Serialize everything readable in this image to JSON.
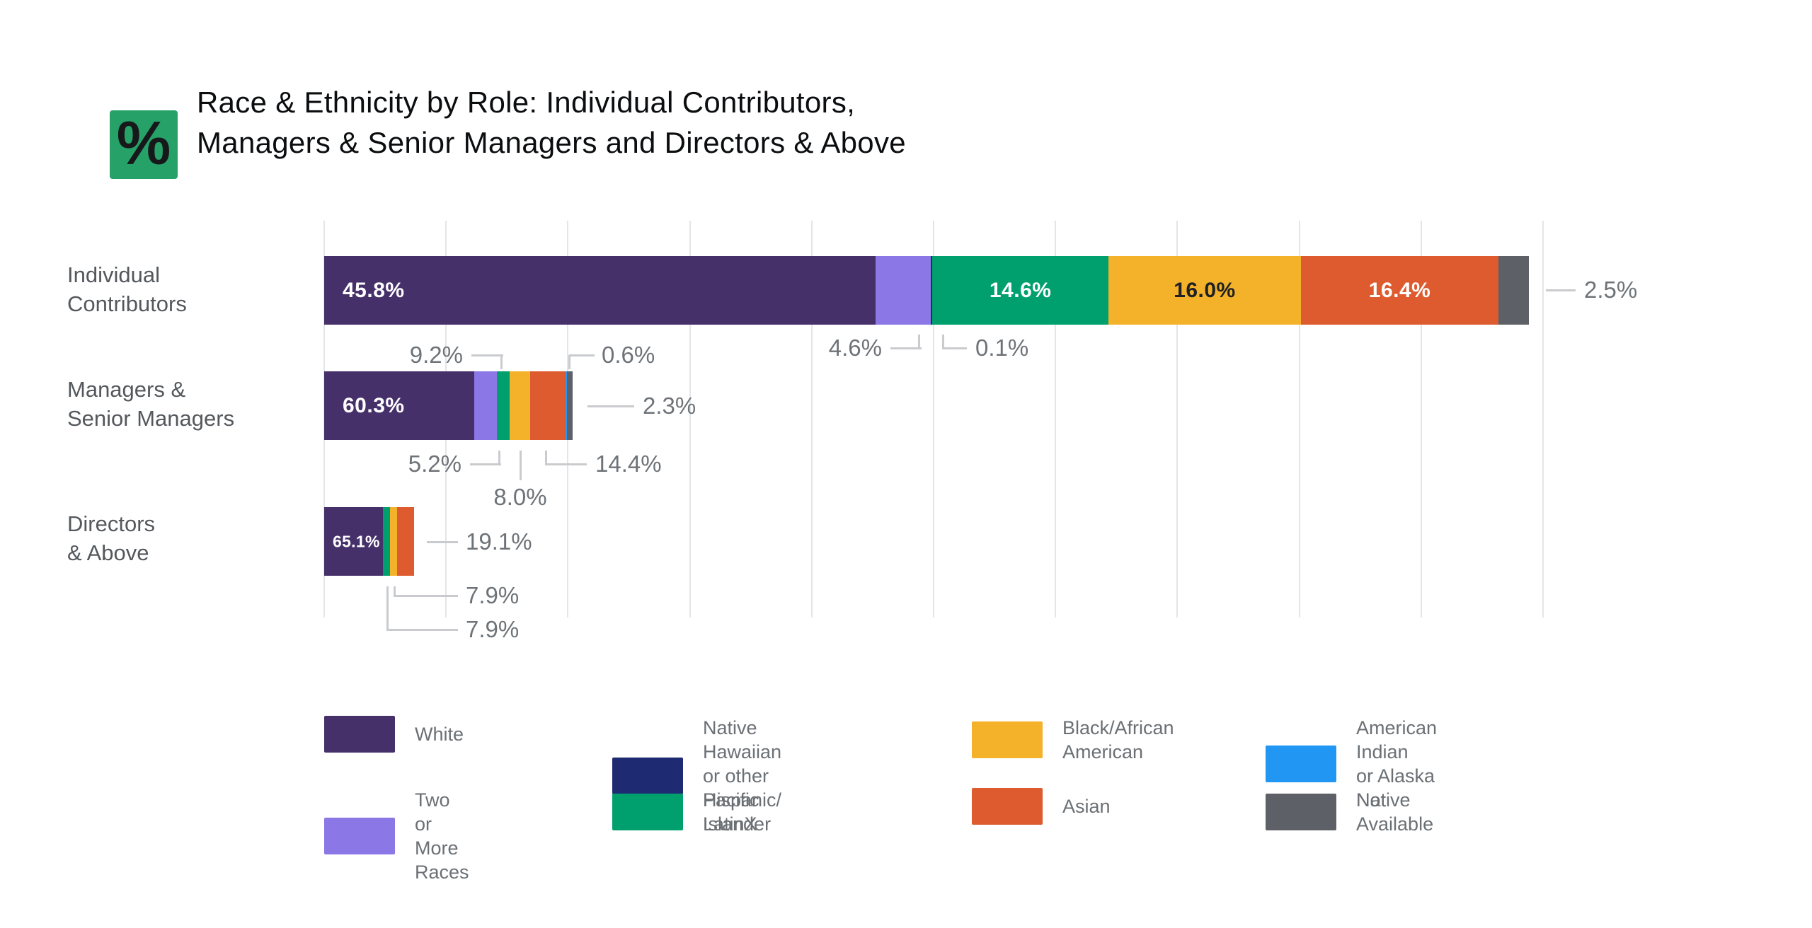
{
  "title": {
    "lines": [
      "Race & Ethnicity by Role: Individual Contributors,",
      "Managers & Senior Managers and Directors & Above"
    ]
  },
  "logo": {
    "glyph": "%"
  },
  "colors": {
    "white": "#46306A",
    "two_or_more": "#8B78E6",
    "native_hawaiian": "#1E2A72",
    "hispanic_latinx": "#00A06E",
    "black_african_american": "#F3B229",
    "asian": "#DD5B2F",
    "american_indian": "#2196F3",
    "not_available": "#5D6167",
    "grid": "#E4E5E8",
    "callout_line": "#C9CBCE",
    "callout_text": "#6E7378",
    "row_label": "#54585C",
    "legend_text": "#6B7075",
    "title_text": "#0B0D0F",
    "logo_bg": "#26A269",
    "logo_fg": "#16181A",
    "bar_label_light": "#FFFFFF",
    "bar_label_dark": "#1E2024"
  },
  "chart_data": {
    "type": "bar",
    "orientation": "horizontal",
    "stacked": true,
    "unit": "percent",
    "title": "Race & Ethnicity by Role: Individual Contributors, Managers & Senior Managers and Directors & Above",
    "categories": [
      "Individual Contributors",
      "Managers & Senior Managers",
      "Directors & Above"
    ],
    "series": [
      {
        "name": "White",
        "values": [
          45.8,
          60.3,
          65.1
        ]
      },
      {
        "name": "Two or More Races",
        "values": [
          4.6,
          9.2,
          null
        ]
      },
      {
        "name": "Native Hawaiian or other Pacific Islander",
        "values": [
          0.1,
          null,
          null
        ]
      },
      {
        "name": "Hispanic/LatinX",
        "values": [
          14.6,
          5.2,
          7.9
        ]
      },
      {
        "name": "Black/African American",
        "values": [
          16.0,
          8.0,
          7.9
        ]
      },
      {
        "name": "Asian",
        "values": [
          16.4,
          14.4,
          19.1
        ]
      },
      {
        "name": "American Indian or Alaska Native",
        "values": [
          null,
          0.6,
          null
        ]
      },
      {
        "name": "Not Available",
        "values": [
          2.5,
          2.3,
          null
        ]
      }
    ],
    "bar_axis_fraction": [
      0.988,
      0.204,
      0.074
    ],
    "note_each_bar_totals": 100,
    "gridlines_pct": [
      0,
      10,
      20,
      30,
      40,
      50,
      60,
      70,
      80,
      90,
      100
    ],
    "legend_position": "bottom",
    "grid": true
  },
  "rows": [
    {
      "name": "individual-contributors",
      "label_lines": [
        "Individual",
        "Contributors"
      ],
      "bar_width_pct": 98.8,
      "segments": [
        {
          "category": "white",
          "value": 45.8,
          "label": "45.8%",
          "label_pos": "left",
          "label_theme": "light"
        },
        {
          "category": "two_or_more",
          "value": 4.6
        },
        {
          "category": "native_hawaiian",
          "value": 0.1
        },
        {
          "category": "hispanic_latinx",
          "value": 14.6,
          "label": "14.6%",
          "label_pos": "center",
          "label_theme": "light"
        },
        {
          "category": "black_african_american",
          "value": 16.0,
          "label": "16.0%",
          "label_pos": "center",
          "label_theme": "dark"
        },
        {
          "category": "asian",
          "value": 16.4,
          "label": "16.4%",
          "label_pos": "center",
          "label_theme": "light"
        },
        {
          "category": "not_available",
          "value": 2.5
        }
      ]
    },
    {
      "name": "managers-senior-managers",
      "label_lines": [
        "Managers &",
        "Senior Managers"
      ],
      "bar_width_pct": 20.4,
      "segments": [
        {
          "category": "white",
          "value": 60.3,
          "label": "60.3%",
          "label_pos": "left",
          "label_theme": "light"
        },
        {
          "category": "two_or_more",
          "value": 9.2
        },
        {
          "category": "hispanic_latinx",
          "value": 5.2
        },
        {
          "category": "black_african_american",
          "value": 8.0
        },
        {
          "category": "asian",
          "value": 14.4
        },
        {
          "category": "american_indian",
          "value": 0.6
        },
        {
          "category": "not_available",
          "value": 2.3
        }
      ]
    },
    {
      "name": "directors-above",
      "label_lines": [
        "Directors",
        "& Above"
      ],
      "bar_width_pct": 7.4,
      "segments": [
        {
          "category": "white",
          "value": 65.1,
          "label": "65.1%",
          "label_pos": "left",
          "label_theme": "light",
          "label_size": "sm"
        },
        {
          "category": "hispanic_latinx",
          "value": 7.9
        },
        {
          "category": "black_african_american",
          "value": 7.9
        },
        {
          "category": "asian",
          "value": 19.1
        }
      ]
    }
  ],
  "callouts": [
    {
      "name": "ic-two-or-more",
      "value": "4.6%"
    },
    {
      "name": "ic-native-hawaiian",
      "value": "0.1%"
    },
    {
      "name": "ic-not-available",
      "value": "2.5%"
    },
    {
      "name": "m-two-or-more",
      "value": "9.2%"
    },
    {
      "name": "m-american-indian",
      "value": "0.6%"
    },
    {
      "name": "m-not-available",
      "value": "2.3%"
    },
    {
      "name": "m-hispanic",
      "value": "5.2%"
    },
    {
      "name": "m-black",
      "value": "8.0%"
    },
    {
      "name": "m-asian",
      "value": "14.4%"
    },
    {
      "name": "d-asian",
      "value": "19.1%"
    },
    {
      "name": "d-black",
      "value": "7.9%"
    },
    {
      "name": "d-hispanic",
      "value": "7.9%"
    }
  ],
  "legend": {
    "items": [
      {
        "category": "white",
        "label_lines": [
          "White"
        ]
      },
      {
        "category": "native_hawaiian",
        "label_lines": [
          "Native Hawaiian or other",
          "Pacific Islander"
        ]
      },
      {
        "category": "black_african_american",
        "label_lines": [
          "Black/African",
          "American"
        ]
      },
      {
        "category": "american_indian",
        "label_lines": [
          "American Indian",
          "or Alaska Native"
        ]
      },
      {
        "category": "two_or_more",
        "label_lines": [
          "Two or More",
          "Races"
        ]
      },
      {
        "category": "hispanic_latinx",
        "label_lines": [
          "Hispanic/",
          "LatinX"
        ]
      },
      {
        "category": "asian",
        "label_lines": [
          "Asian"
        ]
      },
      {
        "category": "not_available",
        "label_lines": [
          "Not",
          "Available"
        ]
      }
    ]
  }
}
